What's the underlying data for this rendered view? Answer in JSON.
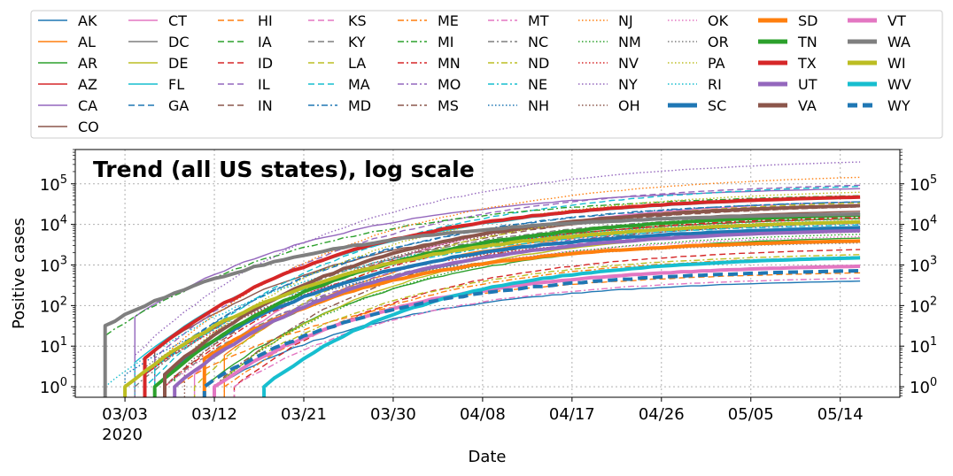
{
  "chart_data": {
    "type": "line",
    "title": "Trend (all US states), log scale",
    "xlabel": "Date",
    "ylabel": "Positive cases",
    "yscale": "log",
    "ylim": [
      0.55,
      700000
    ],
    "xlim": [
      "2020-02-27",
      "2020-05-20"
    ],
    "x_ticks": [
      {
        "date": "2020-03-03",
        "label": "03/03",
        "sublabel": "2020"
      },
      {
        "date": "2020-03-12",
        "label": "03/12",
        "sublabel": ""
      },
      {
        "date": "2020-03-21",
        "label": "03/21",
        "sublabel": ""
      },
      {
        "date": "2020-03-30",
        "label": "03/30",
        "sublabel": ""
      },
      {
        "date": "2020-04-08",
        "label": "04/08",
        "sublabel": ""
      },
      {
        "date": "2020-04-17",
        "label": "04/17",
        "sublabel": ""
      },
      {
        "date": "2020-04-26",
        "label": "04/26",
        "sublabel": ""
      },
      {
        "date": "2020-05-05",
        "label": "05/05",
        "sublabel": ""
      },
      {
        "date": "2020-05-14",
        "label": "05/14",
        "sublabel": ""
      }
    ],
    "y_ticks": [
      {
        "value": 1,
        "base": "10",
        "exp": "0"
      },
      {
        "value": 10,
        "base": "10",
        "exp": "1"
      },
      {
        "value": 100,
        "base": "10",
        "exp": "2"
      },
      {
        "value": 1000,
        "base": "10",
        "exp": "3"
      },
      {
        "value": 10000,
        "base": "10",
        "exp": "4"
      },
      {
        "value": 100000,
        "base": "10",
        "exp": "5"
      }
    ],
    "grid": true,
    "legend_position": "top",
    "series": [
      {
        "name": "AK",
        "color": "#1f77b4",
        "style": "solid",
        "width": "thin",
        "start": "2020-03-12",
        "start_value": 1,
        "end": "2020-05-16",
        "end_value": 400
      },
      {
        "name": "AL",
        "color": "#ff7f0e",
        "style": "solid",
        "width": "thin",
        "start": "2020-03-13",
        "start_value": 6,
        "end": "2020-05-16",
        "end_value": 11200
      },
      {
        "name": "AR",
        "color": "#2ca02c",
        "style": "solid",
        "width": "thin",
        "start": "2020-03-11",
        "start_value": 1,
        "end": "2020-05-16",
        "end_value": 4600
      },
      {
        "name": "AZ",
        "color": "#d62728",
        "style": "solid",
        "width": "thin",
        "start": "2020-03-05",
        "start_value": 2,
        "end": "2020-05-16",
        "end_value": 13900
      },
      {
        "name": "CA",
        "color": "#9467bd",
        "style": "solid",
        "width": "thin",
        "start": "2020-03-04",
        "start_value": 53,
        "end": "2020-05-16",
        "end_value": 76000
      },
      {
        "name": "CO",
        "color": "#8c564b",
        "style": "solid",
        "width": "thin",
        "start": "2020-03-06",
        "start_value": 8,
        "end": "2020-05-16",
        "end_value": 21000
      },
      {
        "name": "CT",
        "color": "#e377c2",
        "style": "solid",
        "width": "thin",
        "start": "2020-03-10",
        "start_value": 2,
        "end": "2020-05-16",
        "end_value": 36000
      },
      {
        "name": "DC",
        "color": "#7f7f7f",
        "style": "solid",
        "width": "thin",
        "start": "2020-03-08",
        "start_value": 1,
        "end": "2020-05-16",
        "end_value": 6900
      },
      {
        "name": "DE",
        "color": "#bcbd22",
        "style": "solid",
        "width": "thin",
        "start": "2020-03-12",
        "start_value": 1,
        "end": "2020-05-16",
        "end_value": 7200
      },
      {
        "name": "FL",
        "color": "#17becf",
        "style": "solid",
        "width": "thin",
        "start": "2020-03-04",
        "start_value": 4,
        "end": "2020-05-16",
        "end_value": 45000
      },
      {
        "name": "GA",
        "color": "#1f77b4",
        "style": "dashed",
        "width": "thin",
        "start": "2020-03-05",
        "start_value": 2,
        "end": "2020-05-16",
        "end_value": 36000
      },
      {
        "name": "HI",
        "color": "#ff7f0e",
        "style": "dashed",
        "width": "thin",
        "start": "2020-03-08",
        "start_value": 1,
        "end": "2020-05-16",
        "end_value": 640
      },
      {
        "name": "IA",
        "color": "#2ca02c",
        "style": "dashed",
        "width": "thin",
        "start": "2020-03-08",
        "start_value": 3,
        "end": "2020-05-16",
        "end_value": 14000
      },
      {
        "name": "ID",
        "color": "#d62728",
        "style": "dashed",
        "width": "thin",
        "start": "2020-03-14",
        "start_value": 1,
        "end": "2020-05-16",
        "end_value": 2400
      },
      {
        "name": "IL",
        "color": "#9467bd",
        "style": "dashed",
        "width": "thin",
        "start": "2020-03-06",
        "start_value": 5,
        "end": "2020-05-16",
        "end_value": 92000
      },
      {
        "name": "IN",
        "color": "#8c564b",
        "style": "dashed",
        "width": "thin",
        "start": "2020-03-07",
        "start_value": 1,
        "end": "2020-05-16",
        "end_value": 27000
      },
      {
        "name": "KS",
        "color": "#e377c2",
        "style": "dashed",
        "width": "thin",
        "start": "2020-03-08",
        "start_value": 1,
        "end": "2020-05-16",
        "end_value": 7900
      },
      {
        "name": "KY",
        "color": "#7f7f7f",
        "style": "dashed",
        "width": "thin",
        "start": "2020-03-07",
        "start_value": 1,
        "end": "2020-05-16",
        "end_value": 7200
      },
      {
        "name": "LA",
        "color": "#bcbd22",
        "style": "dashed",
        "width": "thin",
        "start": "2020-03-10",
        "start_value": 1,
        "end": "2020-05-16",
        "end_value": 34000
      },
      {
        "name": "MA",
        "color": "#17becf",
        "style": "dashed",
        "width": "thin",
        "start": "2020-03-05",
        "start_value": 1,
        "end": "2020-05-16",
        "end_value": 86000
      },
      {
        "name": "MD",
        "color": "#1f77b4",
        "style": "dashdot",
        "width": "thin",
        "start": "2020-03-06",
        "start_value": 3,
        "end": "2020-05-16",
        "end_value": 36000
      },
      {
        "name": "ME",
        "color": "#ff7f0e",
        "style": "dashdot",
        "width": "thin",
        "start": "2020-03-13",
        "start_value": 1,
        "end": "2020-05-16",
        "end_value": 1600
      },
      {
        "name": "MI",
        "color": "#2ca02c",
        "style": "dashdot",
        "width": "thin",
        "start": "2020-03-01",
        "start_value": 18,
        "end": "2020-05-16",
        "end_value": 51000
      },
      {
        "name": "MN",
        "color": "#d62728",
        "style": "dashdot",
        "width": "thin",
        "start": "2020-03-07",
        "start_value": 1,
        "end": "2020-05-16",
        "end_value": 15000
      },
      {
        "name": "MO",
        "color": "#9467bd",
        "style": "dashdot",
        "width": "thin",
        "start": "2020-03-08",
        "start_value": 1,
        "end": "2020-05-16",
        "end_value": 10500
      },
      {
        "name": "MS",
        "color": "#8c564b",
        "style": "dashdot",
        "width": "thin",
        "start": "2020-03-12",
        "start_value": 1,
        "end": "2020-05-16",
        "end_value": 11000
      },
      {
        "name": "MT",
        "color": "#e377c2",
        "style": "dashdot",
        "width": "thin",
        "start": "2020-03-14",
        "start_value": 1,
        "end": "2020-05-16",
        "end_value": 470
      },
      {
        "name": "NC",
        "color": "#7f7f7f",
        "style": "dashdot",
        "width": "thin",
        "start": "2020-03-04",
        "start_value": 1,
        "end": "2020-05-16",
        "end_value": 18500
      },
      {
        "name": "ND",
        "color": "#bcbd22",
        "style": "dashdot",
        "width": "thin",
        "start": "2020-03-12",
        "start_value": 1,
        "end": "2020-05-16",
        "end_value": 1800
      },
      {
        "name": "NE",
        "color": "#17becf",
        "style": "dashdot",
        "width": "thin",
        "start": "2020-03-06",
        "start_value": 3,
        "end": "2020-05-16",
        "end_value": 9700
      },
      {
        "name": "NH",
        "color": "#1f77b4",
        "style": "dotted",
        "width": "thin",
        "start": "2020-03-03",
        "start_value": 2,
        "end": "2020-05-16",
        "end_value": 3600
      },
      {
        "name": "NJ",
        "color": "#ff7f0e",
        "style": "dotted",
        "width": "thin",
        "start": "2020-03-05",
        "start_value": 2,
        "end": "2020-05-16",
        "end_value": 145000
      },
      {
        "name": "NM",
        "color": "#2ca02c",
        "style": "dotted",
        "width": "thin",
        "start": "2020-03-12",
        "start_value": 1,
        "end": "2020-05-16",
        "end_value": 5700
      },
      {
        "name": "NV",
        "color": "#d62728",
        "style": "dotted",
        "width": "thin",
        "start": "2020-03-05",
        "start_value": 2,
        "end": "2020-05-16",
        "end_value": 6500
      },
      {
        "name": "NY",
        "color": "#9467bd",
        "style": "dotted",
        "width": "thin",
        "start": "2020-03-04",
        "start_value": 6,
        "end": "2020-05-16",
        "end_value": 345000
      },
      {
        "name": "OH",
        "color": "#8c564b",
        "style": "dotted",
        "width": "thin",
        "start": "2020-03-09",
        "start_value": 3,
        "end": "2020-05-16",
        "end_value": 27000
      },
      {
        "name": "OK",
        "color": "#e377c2",
        "style": "dotted",
        "width": "thin",
        "start": "2020-03-07",
        "start_value": 1,
        "end": "2020-05-16",
        "end_value": 5000
      },
      {
        "name": "OR",
        "color": "#7f7f7f",
        "style": "dotted",
        "width": "thin",
        "start": "2020-03-05",
        "start_value": 3,
        "end": "2020-05-16",
        "end_value": 3500
      },
      {
        "name": "PA",
        "color": "#bcbd22",
        "style": "dotted",
        "width": "thin",
        "start": "2020-03-07",
        "start_value": 2,
        "end": "2020-05-16",
        "end_value": 62000
      },
      {
        "name": "RI",
        "color": "#17becf",
        "style": "dotted",
        "width": "thin",
        "start": "2020-03-01",
        "start_value": 1,
        "end": "2020-05-16",
        "end_value": 12500
      },
      {
        "name": "SC",
        "color": "#1f77b4",
        "style": "solid",
        "width": "thick",
        "start": "2020-03-07",
        "start_value": 2,
        "end": "2020-05-16",
        "end_value": 8300
      },
      {
        "name": "SD",
        "color": "#ff7f0e",
        "style": "solid",
        "width": "thick",
        "start": "2020-03-11",
        "start_value": 5,
        "end": "2020-05-16",
        "end_value": 3900
      },
      {
        "name": "TN",
        "color": "#2ca02c",
        "style": "solid",
        "width": "thick",
        "start": "2020-03-06",
        "start_value": 1,
        "end": "2020-05-16",
        "end_value": 17000
      },
      {
        "name": "TX",
        "color": "#d62728",
        "style": "solid",
        "width": "thick",
        "start": "2020-03-05",
        "start_value": 5,
        "end": "2020-05-16",
        "end_value": 47000
      },
      {
        "name": "UT",
        "color": "#9467bd",
        "style": "solid",
        "width": "thick",
        "start": "2020-03-08",
        "start_value": 1,
        "end": "2020-05-16",
        "end_value": 7000
      },
      {
        "name": "VA",
        "color": "#8c564b",
        "style": "solid",
        "width": "thick",
        "start": "2020-03-07",
        "start_value": 2,
        "end": "2020-05-16",
        "end_value": 29000
      },
      {
        "name": "VT",
        "color": "#e377c2",
        "style": "solid",
        "width": "thick",
        "start": "2020-03-12",
        "start_value": 1,
        "end": "2020-05-16",
        "end_value": 930
      },
      {
        "name": "WA",
        "color": "#7f7f7f",
        "style": "solid",
        "width": "thick",
        "start": "2020-03-01",
        "start_value": 32,
        "end": "2020-05-16",
        "end_value": 18000
      },
      {
        "name": "WI",
        "color": "#bcbd22",
        "style": "solid",
        "width": "thick",
        "start": "2020-03-03",
        "start_value": 1,
        "end": "2020-05-16",
        "end_value": 11500
      },
      {
        "name": "WV",
        "color": "#17becf",
        "style": "solid",
        "width": "thick",
        "start": "2020-03-17",
        "start_value": 1,
        "end": "2020-05-16",
        "end_value": 1500
      },
      {
        "name": "WY",
        "color": "#1f77b4",
        "style": "dashed",
        "width": "thick",
        "start": "2020-03-11",
        "start_value": 1,
        "end": "2020-05-16",
        "end_value": 720
      }
    ]
  }
}
